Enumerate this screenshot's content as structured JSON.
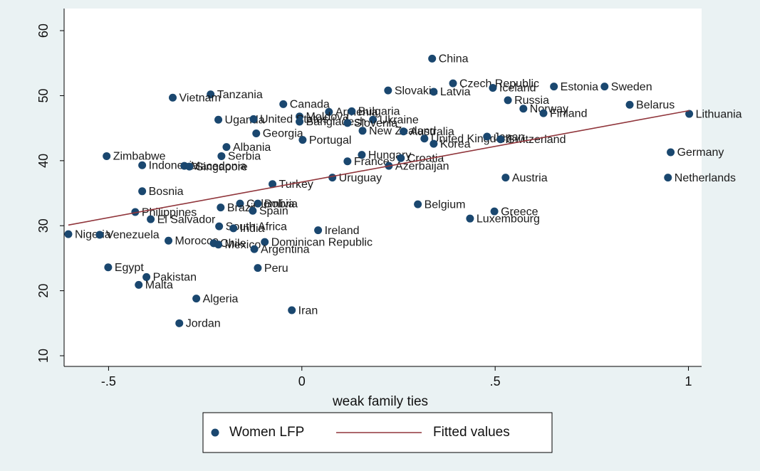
{
  "chart_data": {
    "type": "scatter",
    "xlabel": "weak family ties",
    "xlim": [
      -0.615,
      1.034
    ],
    "ylim": [
      8.36,
      63.4
    ],
    "xticks": [
      {
        "value": -0.5,
        "label": "-.5"
      },
      0,
      {
        "value": 0.5,
        "label": ".5"
      },
      1
    ],
    "yticks": [
      10,
      20,
      30,
      40,
      50,
      60
    ],
    "grid": false,
    "legend": "bottom",
    "series": [
      {
        "name": "Women LFP",
        "color": "#1a476f",
        "kind": "points",
        "labels": [
          "China",
          "Czech Republic",
          "Estonia",
          "Sweden",
          "Iceland",
          "Slovakia",
          "Latvia",
          "Tanzania",
          "Vietnam",
          "Russia",
          "Canada",
          "Belarus",
          "Norway",
          "Lithuania",
          "Finland",
          "Armenia",
          "Bulgaria",
          "Moldova",
          "Ukraine",
          "Uganda",
          "United States",
          "Bangladesh",
          "Slovenia",
          "New Zealand",
          "Australia",
          "Georgia",
          "United Kingdom",
          "Japan",
          "Switzerland",
          "Portugal",
          "Korea",
          "Albania",
          "Zimbabwe",
          "Serbia",
          "Hungary",
          "Germany",
          "Croatia",
          "France",
          "Indonesia",
          "Macedonia",
          "Singapore",
          "Azerbaijan",
          "Uruguay",
          "Austria",
          "Netherlands",
          "Turkey",
          "Bosnia",
          "Colombia",
          "Bolivia",
          "Belgium",
          "Brazil",
          "Spain",
          "Philippines",
          "Greece",
          "El Salvador",
          "Luxembourg",
          "South Africa",
          "India",
          "Ireland",
          "Nigeria",
          "Venezuela",
          "Morocco",
          "Chile",
          "Mexico",
          "Dominican Republic",
          "Argentina",
          "Egypt",
          "Peru",
          "Pakistan",
          "Malta",
          "Algeria",
          "Iran",
          "Jordan"
        ],
        "x": [
          0.337,
          0.391,
          0.652,
          0.783,
          0.494,
          0.223,
          0.341,
          -0.236,
          -0.334,
          0.533,
          -0.048,
          0.848,
          0.573,
          1.002,
          0.625,
          0.07,
          0.129,
          -0.006,
          0.184,
          -0.216,
          -0.125,
          -0.006,
          0.118,
          0.157,
          0.263,
          -0.118,
          0.317,
          0.479,
          0.514,
          0.002,
          0.341,
          -0.195,
          -0.505,
          -0.208,
          0.155,
          0.954,
          0.256,
          0.118,
          -0.413,
          -0.304,
          -0.291,
          0.225,
          0.079,
          0.527,
          0.947,
          -0.076,
          -0.413,
          -0.16,
          -0.114,
          0.3,
          -0.21,
          -0.127,
          -0.431,
          0.498,
          -0.391,
          0.435,
          -0.214,
          -0.177,
          0.042,
          -0.604,
          -0.523,
          -0.345,
          -0.228,
          -0.216,
          -0.096,
          -0.123,
          -0.501,
          -0.114,
          -0.402,
          -0.422,
          -0.273,
          -0.026,
          -0.317
        ],
        "values": [
          55.7,
          51.9,
          51.4,
          51.4,
          51.2,
          50.8,
          50.6,
          50.2,
          49.7,
          49.3,
          48.7,
          48.6,
          48.0,
          47.2,
          47.3,
          47.5,
          47.6,
          46.8,
          46.3,
          46.3,
          46.4,
          46.0,
          45.8,
          44.6,
          44.5,
          44.2,
          43.4,
          43.7,
          43.3,
          43.2,
          42.6,
          42.1,
          40.7,
          40.7,
          40.9,
          41.3,
          40.4,
          39.9,
          39.3,
          39.2,
          39.1,
          39.2,
          37.4,
          37.4,
          37.4,
          36.4,
          35.3,
          33.4,
          33.4,
          33.3,
          32.8,
          32.3,
          32.1,
          32.2,
          31.0,
          31.1,
          29.9,
          29.6,
          29.3,
          28.7,
          28.6,
          27.7,
          27.3,
          27.1,
          27.5,
          26.4,
          23.6,
          23.5,
          22.1,
          20.9,
          18.8,
          17.0,
          15.0
        ]
      },
      {
        "name": "Fitted values",
        "color": "#90353b",
        "kind": "line",
        "x": [
          -0.604,
          1.002
        ],
        "values": [
          30.1,
          47.7
        ]
      }
    ]
  }
}
